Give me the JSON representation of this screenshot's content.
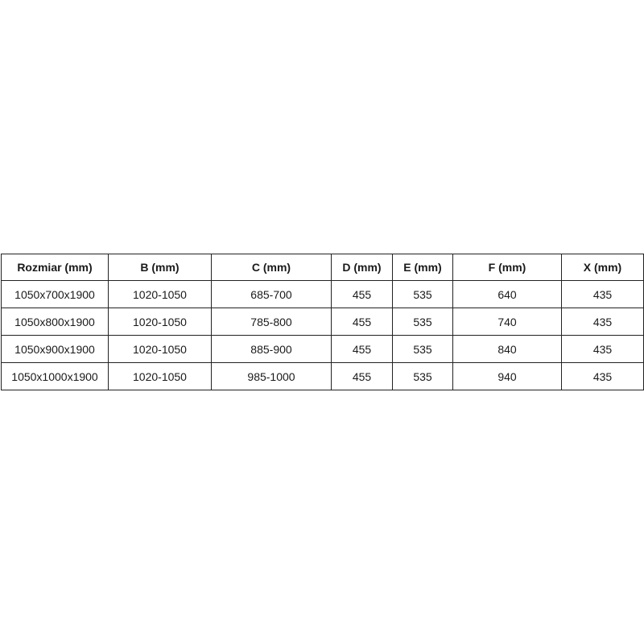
{
  "table": {
    "headers": [
      "Rozmiar (mm)",
      "B (mm)",
      "C (mm)",
      "D (mm)",
      "E (mm)",
      "F (mm)",
      "X (mm)"
    ],
    "rows": [
      [
        "1050x700x1900",
        "1020-1050",
        "685-700",
        "455",
        "535",
        "640",
        "435"
      ],
      [
        "1050x800x1900",
        "1020-1050",
        "785-800",
        "455",
        "535",
        "740",
        "435"
      ],
      [
        "1050x900x1900",
        "1020-1050",
        "885-900",
        "455",
        "535",
        "840",
        "435"
      ],
      [
        "1050x1000x1900",
        "1020-1050",
        "985-1000",
        "455",
        "535",
        "940",
        "435"
      ]
    ]
  }
}
